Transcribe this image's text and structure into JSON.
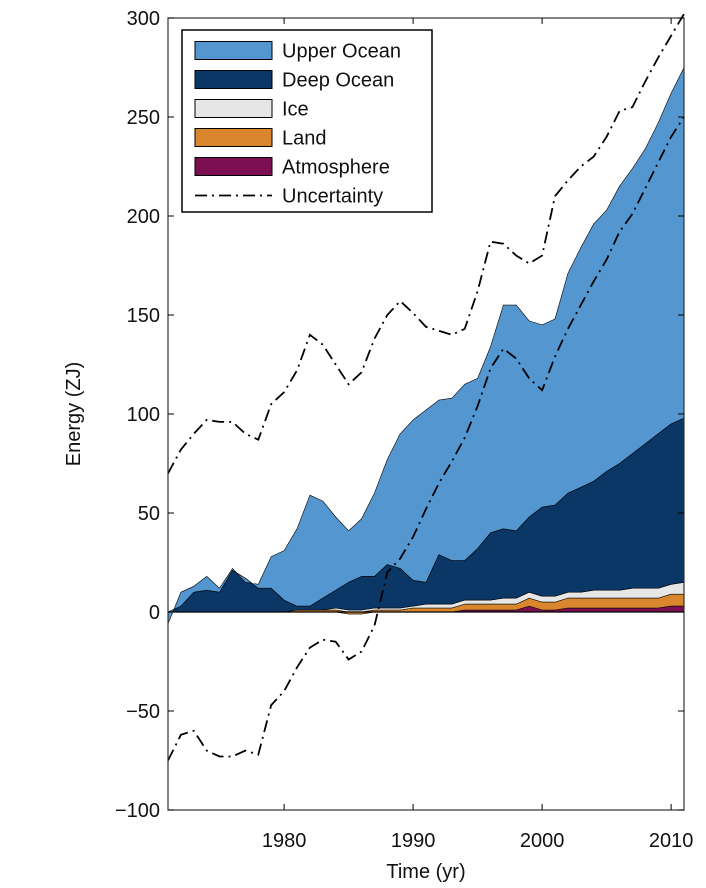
{
  "chart_data": {
    "type": "area",
    "stacked": true,
    "title": "",
    "xlabel": "Time (yr)",
    "ylabel": "Energy (ZJ)",
    "xlim": [
      1971,
      2011
    ],
    "ylim": [
      -100,
      300
    ],
    "xticks": [
      1980,
      1990,
      2000,
      2010
    ],
    "yticks": [
      -100,
      -50,
      0,
      50,
      100,
      150,
      200,
      250,
      300
    ],
    "x": [
      1971,
      1972,
      1973,
      1974,
      1975,
      1976,
      1977,
      1978,
      1979,
      1980,
      1981,
      1982,
      1983,
      1984,
      1985,
      1986,
      1987,
      1988,
      1989,
      1990,
      1991,
      1992,
      1993,
      1994,
      1995,
      1996,
      1997,
      1998,
      1999,
      2000,
      2001,
      2002,
      2003,
      2004,
      2005,
      2006,
      2007,
      2008,
      2009,
      2010,
      2011
    ],
    "series": [
      {
        "name": "Atmosphere",
        "color": "#7b0f52",
        "values": [
          0,
          0,
          0,
          0,
          0,
          0,
          0,
          0,
          0,
          0,
          0,
          0,
          0,
          0,
          -1,
          -1,
          0,
          0,
          0,
          0,
          0,
          0,
          0,
          1,
          1,
          1,
          1,
          1,
          3,
          1,
          1,
          2,
          2,
          2,
          2,
          2,
          2,
          2,
          2,
          3,
          3
        ]
      },
      {
        "name": "Land",
        "color": "#d9862e",
        "values": [
          0,
          0,
          0,
          0,
          0,
          0,
          0,
          0,
          0,
          0,
          1,
          1,
          1,
          1,
          1,
          1,
          1,
          1,
          1,
          2,
          2,
          2,
          2,
          3,
          3,
          3,
          3,
          3,
          4,
          4,
          4,
          5,
          5,
          5,
          5,
          5,
          5,
          5,
          5,
          6,
          6
        ]
      },
      {
        "name": "Ice",
        "color": "#e6e6e6",
        "values": [
          0,
          0,
          0,
          0,
          0,
          0,
          0,
          0,
          0,
          0,
          0,
          0,
          0,
          1,
          1,
          1,
          1,
          1,
          1,
          1,
          2,
          2,
          2,
          2,
          2,
          2,
          3,
          3,
          3,
          3,
          3,
          3,
          3,
          4,
          4,
          4,
          5,
          5,
          5,
          5,
          6
        ]
      },
      {
        "name": "Deep Ocean",
        "color": "#0b3766",
        "values": [
          0,
          3,
          10,
          11,
          10,
          21,
          17,
          12,
          12,
          6,
          2,
          2,
          6,
          9,
          14,
          17,
          16,
          22,
          20,
          13,
          11,
          25,
          22,
          20,
          26,
          34,
          35,
          34,
          38,
          45,
          46,
          50,
          53,
          55,
          60,
          64,
          68,
          73,
          78,
          81,
          83
        ]
      },
      {
        "name": "Upper Ocean",
        "color": "#5496d0",
        "values": [
          -6,
          7,
          3,
          7,
          2,
          1,
          -2,
          2,
          16,
          25,
          39,
          56,
          49,
          37,
          26,
          29,
          42,
          53,
          68,
          81,
          87,
          78,
          82,
          89,
          86,
          94,
          113,
          114,
          99,
          92,
          94,
          111,
          121,
          130,
          132,
          140,
          144,
          149,
          157,
          167,
          177
        ]
      }
    ],
    "uncertainty_upper": [
      70,
      82,
      90,
      97,
      96,
      96,
      90,
      87,
      105,
      111,
      122,
      140,
      135,
      125,
      115,
      121,
      138,
      150,
      157,
      151,
      144,
      142,
      140,
      143,
      162,
      187,
      186,
      180,
      176,
      180,
      210,
      218,
      225,
      230,
      240,
      253,
      255,
      268,
      280,
      291,
      302
    ],
    "uncertainty_lower": [
      -75,
      -62,
      -60,
      -70,
      -73,
      -73,
      -70,
      -72,
      -47,
      -40,
      -28,
      -18,
      -14,
      -15,
      -24,
      -20,
      -7,
      20,
      27,
      38,
      52,
      65,
      76,
      88,
      104,
      123,
      133,
      128,
      118,
      112,
      129,
      143,
      155,
      167,
      178,
      192,
      201,
      214,
      227,
      240,
      250
    ],
    "legend": {
      "placement": "top-left",
      "entries": [
        "Upper Ocean",
        "Deep Ocean",
        "Ice",
        "Land",
        "Atmosphere",
        "Uncertainty"
      ]
    }
  }
}
